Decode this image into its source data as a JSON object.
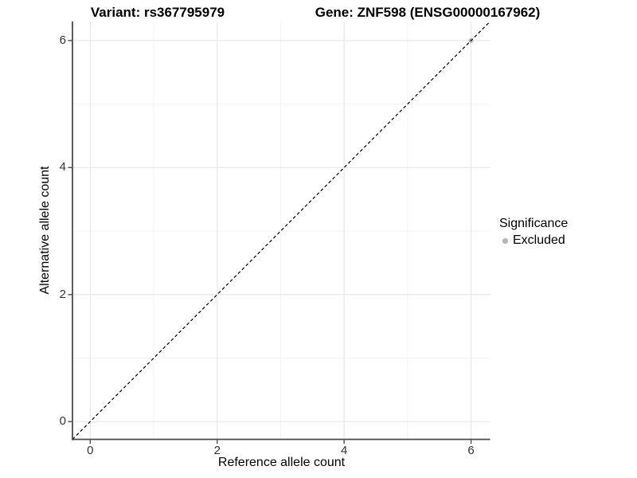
{
  "titles": {
    "variant": "Variant: rs367795979",
    "gene": "Gene: ZNF598 (ENSG00000167962)"
  },
  "legend": {
    "title": "Significance",
    "items": [
      {
        "label": "Excluded",
        "color": "#b3b3b3",
        "marker": "circle"
      }
    ]
  },
  "chart_data": {
    "type": "scatter",
    "title_left": "Variant: rs367795979",
    "title_right": "Gene: ZNF598 (ENSG00000167962)",
    "xlabel": "Reference allele count",
    "ylabel": "Alternative allele count",
    "xlim": [
      -0.28,
      6.3
    ],
    "ylim": [
      -0.28,
      6.3
    ],
    "x_ticks": [
      0,
      2,
      4,
      6
    ],
    "y_ticks": [
      0,
      2,
      4,
      6
    ],
    "x_minor_ticks": [
      1,
      3,
      5
    ],
    "y_minor_ticks": [
      1,
      3,
      5
    ],
    "grid": "major and minor gridlines",
    "legend_position": "right",
    "series": [
      {
        "name": "Excluded",
        "marker": "circle",
        "color": "#b3b3b3",
        "points": [
          {
            "x": 6,
            "y": 6
          }
        ]
      }
    ],
    "reference_line": {
      "kind": "identity",
      "equation": "y = x",
      "line_style": "dashed",
      "color": "#000000"
    }
  },
  "style": {
    "background": "#ffffff",
    "major_grid_color": "#e7e7e7",
    "minor_grid_color": "#f3f3f3",
    "axis_color": "#4a4a4a",
    "tick_label_color": "#333333",
    "text_color": "#000000"
  }
}
